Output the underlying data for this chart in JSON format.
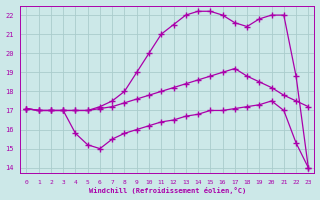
{
  "xlabel": "Windchill (Refroidissement éolien,°C)",
  "bg_color": "#cce8e8",
  "grid_color": "#aacccc",
  "line_color": "#aa00aa",
  "xlim": [
    -0.5,
    23.5
  ],
  "ylim": [
    13.7,
    22.5
  ],
  "xticks": [
    0,
    1,
    2,
    3,
    4,
    5,
    6,
    7,
    8,
    9,
    10,
    11,
    12,
    13,
    14,
    15,
    16,
    17,
    18,
    19,
    20,
    21,
    22,
    23
  ],
  "yticks": [
    14,
    15,
    16,
    17,
    18,
    19,
    20,
    21,
    22
  ],
  "curve1_x": [
    0,
    1,
    2,
    3,
    4,
    5,
    6,
    7,
    8,
    9,
    10,
    11,
    12,
    13,
    14,
    15,
    16,
    17,
    18,
    19,
    20,
    21,
    22,
    23
  ],
  "curve1_y": [
    17.1,
    17.0,
    17.0,
    17.0,
    17.0,
    17.0,
    17.1,
    17.2,
    17.4,
    17.6,
    17.8,
    18.0,
    18.2,
    18.4,
    18.6,
    18.8,
    19.0,
    19.2,
    18.8,
    18.5,
    18.2,
    17.8,
    17.5,
    17.2
  ],
  "curve2_x": [
    0,
    1,
    2,
    3,
    4,
    5,
    6,
    7,
    8,
    9,
    10,
    11,
    12,
    13,
    14,
    15,
    16,
    17,
    18,
    19,
    20,
    21,
    22,
    23
  ],
  "curve2_y": [
    17.1,
    17.0,
    17.0,
    17.0,
    15.8,
    15.2,
    15.0,
    15.5,
    15.8,
    16.0,
    16.2,
    16.4,
    16.5,
    16.7,
    16.8,
    17.0,
    17.0,
    17.1,
    17.2,
    17.3,
    17.5,
    17.0,
    15.3,
    14.0
  ],
  "curve3_x": [
    0,
    1,
    2,
    3,
    4,
    5,
    6,
    7,
    8,
    9,
    10,
    11,
    12,
    13,
    14,
    15,
    16,
    17,
    18,
    19,
    20,
    21,
    22,
    23
  ],
  "curve3_y": [
    17.1,
    17.0,
    17.0,
    17.0,
    17.0,
    17.0,
    17.2,
    17.5,
    18.0,
    19.0,
    20.0,
    21.0,
    21.5,
    22.0,
    22.2,
    22.2,
    22.0,
    21.6,
    21.4,
    21.8,
    22.0,
    22.0,
    18.8,
    14.0
  ]
}
